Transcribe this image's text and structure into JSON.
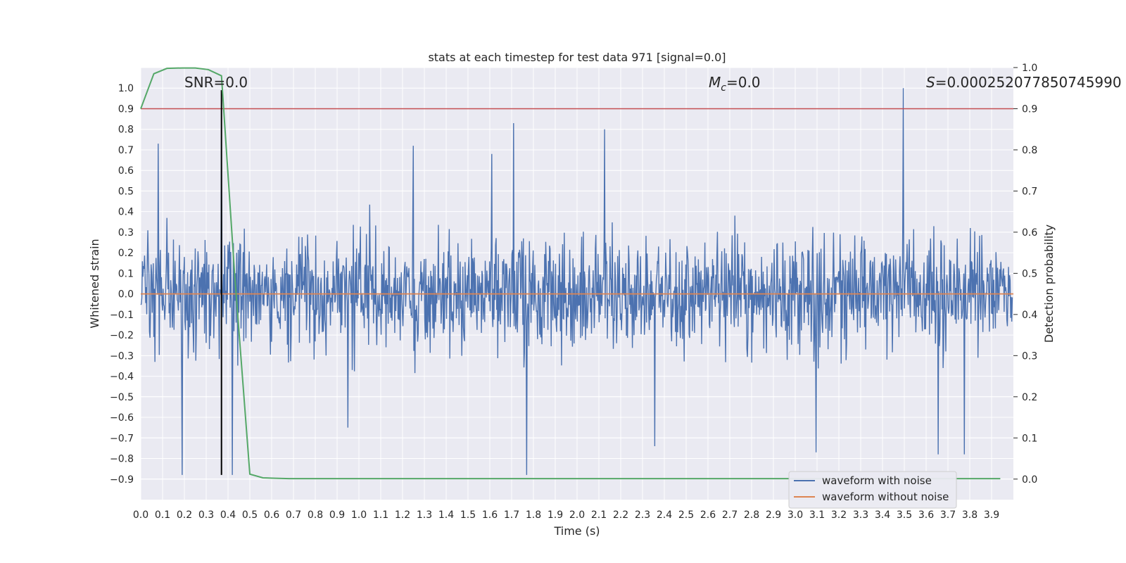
{
  "chart_data": {
    "type": "line",
    "title": "stats at each timestep for test data 971 [signal=0.0]",
    "xlabel": "Time (s)",
    "ylabel_left": "Whitened strain",
    "ylabel_right": "Detection probability",
    "xlim": [
      0.0,
      4.0
    ],
    "ylim_left": [
      -1.0,
      1.1
    ],
    "ylim_right": [
      -0.05,
      1.0
    ],
    "x_ticks": [
      "0.0",
      "0.1",
      "0.2",
      "0.3",
      "0.4",
      "0.5",
      "0.6",
      "0.7",
      "0.8",
      "0.9",
      "1.0",
      "1.1",
      "1.2",
      "1.3",
      "1.4",
      "1.5",
      "1.6",
      "1.7",
      "1.8",
      "1.9",
      "2.0",
      "2.1",
      "2.2",
      "2.3",
      "2.4",
      "2.5",
      "2.6",
      "2.7",
      "2.8",
      "2.9",
      "3.0",
      "3.1",
      "3.2",
      "3.3",
      "3.4",
      "3.5",
      "3.6",
      "3.7",
      "3.8",
      "3.9"
    ],
    "y_ticks_left": [
      "1.0",
      "0.9",
      "0.8",
      "0.7",
      "0.6",
      "0.5",
      "0.4",
      "0.3",
      "0.2",
      "0.1",
      "0.0",
      "−0.1",
      "−0.2",
      "−0.3",
      "−0.4",
      "−0.5",
      "−0.6",
      "−0.7",
      "−0.8",
      "−0.9"
    ],
    "y_ticks_right": [
      "1.0",
      "0.9",
      "0.8",
      "0.7",
      "0.6",
      "0.5",
      "0.4",
      "0.3",
      "0.2",
      "0.1",
      "0.0"
    ],
    "grid": true,
    "legend_position": "lower-right",
    "annotations": {
      "snr": "SNR=0.0",
      "mc_symbol": "M",
      "mc_sub": "c",
      "mc_value": "=0.0",
      "s_symbol": "S",
      "s_value": "=0.000252077850745990"
    },
    "series": [
      {
        "name": "waveform with noise",
        "color": "#4c72b0",
        "axis": "left",
        "noise_amplitude": 0.3,
        "samples": 1600,
        "peaks": [
          {
            "x": 0.08,
            "y": 0.73
          },
          {
            "x": 0.19,
            "y": -0.88
          },
          {
            "x": 0.37,
            "y": 0.8
          },
          {
            "x": 0.42,
            "y": -0.88
          },
          {
            "x": 1.25,
            "y": 0.72
          },
          {
            "x": 1.71,
            "y": 0.83
          },
          {
            "x": 1.77,
            "y": -0.88
          },
          {
            "x": 2.13,
            "y": 0.8
          },
          {
            "x": 3.1,
            "y": -0.77
          },
          {
            "x": 3.5,
            "y": 1.0
          },
          {
            "x": 3.66,
            "y": -0.78
          },
          {
            "x": 3.78,
            "y": -0.78
          },
          {
            "x": 1.61,
            "y": 0.68
          },
          {
            "x": 2.36,
            "y": -0.74
          },
          {
            "x": 0.95,
            "y": -0.65
          }
        ]
      },
      {
        "name": "waveform without noise",
        "color": "#dd8452",
        "axis": "left",
        "x": [
          0.0,
          4.0
        ],
        "y": [
          0.0,
          0.0
        ]
      },
      {
        "name": "",
        "color": "#55a868",
        "axis": "right",
        "x": [
          0.0,
          0.06,
          0.12,
          0.19,
          0.25,
          0.31,
          0.37,
          0.43,
          0.5,
          0.56,
          0.62,
          0.68,
          1.0,
          1.5,
          2.0,
          2.5,
          3.0,
          3.5,
          3.94
        ],
        "y": [
          0.9,
          0.985,
          0.998,
          0.999,
          0.999,
          0.995,
          0.98,
          0.5,
          0.012,
          0.003,
          0.002,
          0.001,
          0.001,
          0.001,
          0.001,
          0.001,
          0.001,
          0.001,
          0.001
        ]
      }
    ],
    "reference_lines": [
      {
        "axis": "right",
        "orientation": "horizontal",
        "value": 0.9,
        "color": "#c44e52"
      },
      {
        "axis": "left",
        "orientation": "vertical",
        "value": 0.37,
        "ymin": -0.88,
        "ymax": 0.99,
        "color": "#000000"
      }
    ]
  }
}
